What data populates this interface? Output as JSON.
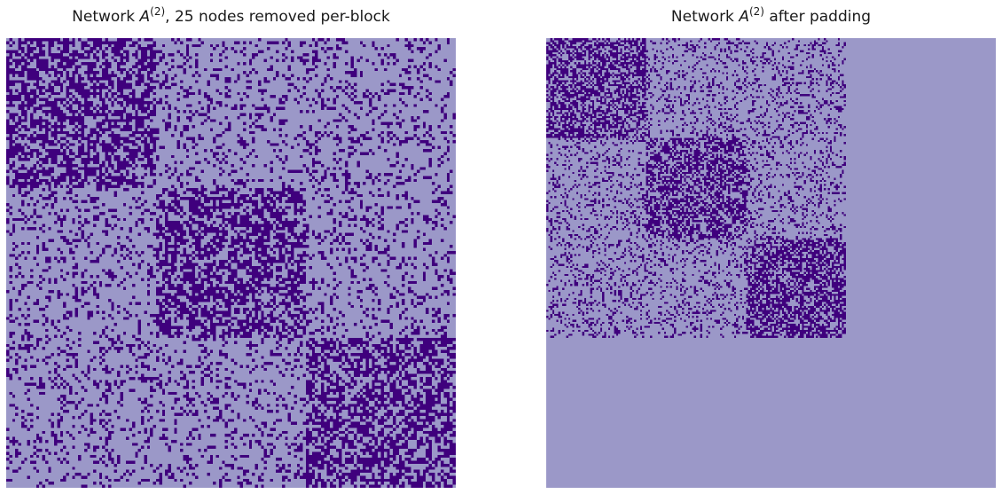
{
  "chart_data": [
    {
      "type": "heatmap",
      "title": {
        "prefix": "Network ",
        "symbol": "A",
        "superscript": "(2)",
        "suffix": ", 25 nodes removed per-block"
      },
      "n": 150,
      "blocks": [
        50,
        50,
        50
      ],
      "block_probabilities": [
        [
          0.6,
          0.2,
          0.2
        ],
        [
          0.2,
          0.6,
          0.2
        ],
        [
          0.2,
          0.2,
          0.6
        ]
      ],
      "active_nodes": 150,
      "colors": {
        "edge": "#3f007d",
        "no_edge": "#9b98c8"
      },
      "axes": "off"
    },
    {
      "type": "heatmap",
      "title": {
        "prefix": "Network ",
        "symbol": "A",
        "superscript": "(2)",
        "suffix": " after padding"
      },
      "n": 225,
      "blocks": [
        50,
        50,
        50
      ],
      "block_probabilities": [
        [
          0.6,
          0.2,
          0.2
        ],
        [
          0.2,
          0.6,
          0.2
        ],
        [
          0.2,
          0.2,
          0.6
        ]
      ],
      "active_nodes": 150,
      "padding_nodes": 75,
      "colors": {
        "edge": "#3f007d",
        "no_edge": "#9b98c8"
      },
      "axes": "off"
    }
  ]
}
